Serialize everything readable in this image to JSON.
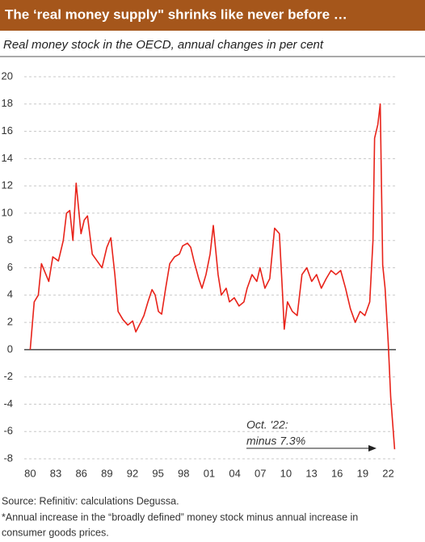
{
  "chart_data": {
    "type": "line",
    "title": "The ‘real money supply\" shrinks like never before …",
    "subtitle": "Real money stock in the OECD, annual changes in per cent",
    "source": "Source: Refinitiv: calculations Degussa.",
    "footnote": [
      "*Annual increase in the “broadly defined” money stock minus annual increase in",
      "consumer goods prices."
    ],
    "annotation": [
      "Oct. '22:",
      "minus 7.3%"
    ],
    "x": [
      1980.0,
      1980.47,
      1980.95,
      1981.32,
      1982.18,
      1982.65,
      1983.31,
      1983.88,
      1984.26,
      1984.64,
      1985.01,
      1985.39,
      1985.96,
      1986.34,
      1986.72,
      1987.28,
      1987.85,
      1988.42,
      1988.99,
      1989.46,
      1989.93,
      1990.31,
      1990.88,
      1991.45,
      1992.02,
      1992.39,
      1992.96,
      1993.34,
      1993.81,
      1994.29,
      1994.66,
      1995.04,
      1995.42,
      1995.89,
      1996.37,
      1996.93,
      1997.5,
      1997.88,
      1998.45,
      1998.83,
      1999.21,
      1999.77,
      2000.15,
      2000.62,
      2001.1,
      2001.48,
      2002.04,
      2002.42,
      2002.99,
      2003.37,
      2003.94,
      2004.5,
      2005.07,
      2005.45,
      2006.02,
      2006.58,
      2006.96,
      2007.53,
      2008.1,
      2008.67,
      2009.23,
      2009.61,
      2009.8,
      2010.18,
      2010.75,
      2011.32,
      2011.88,
      2012.45,
      2013.02,
      2013.59,
      2014.15,
      2014.72,
      2015.29,
      2015.86,
      2016.42,
      2016.99,
      2017.56,
      2018.13,
      2018.7,
      2019.26,
      2019.83,
      2020.21,
      2020.4,
      2020.78,
      2021.06,
      2021.35,
      2021.63,
      2022.0,
      2022.29,
      2022.75
    ],
    "series": [
      {
        "name": "Real money stock",
        "color": "#e8231a",
        "values": [
          0,
          3.5,
          4,
          6.3,
          5,
          6.8,
          6.5,
          8,
          10,
          10.2,
          8,
          12.2,
          8.5,
          9.5,
          9.8,
          7,
          6.5,
          6,
          7.5,
          8.2,
          5.5,
          2.8,
          2.2,
          1.8,
          2.1,
          1.3,
          2,
          2.5,
          3.5,
          4.4,
          4,
          2.8,
          2.6,
          4.5,
          6.3,
          6.8,
          7,
          7.6,
          7.8,
          7.5,
          6.5,
          5.2,
          4.5,
          5.5,
          7,
          9.1,
          5.5,
          4,
          4.5,
          3.5,
          3.8,
          3.2,
          3.5,
          4.5,
          5.5,
          5,
          6,
          4.5,
          5.2,
          8.9,
          8.5,
          4,
          1.5,
          3.5,
          2.8,
          2.5,
          5.5,
          6,
          5,
          5.5,
          4.5,
          5.2,
          5.8,
          5.5,
          5.8,
          4.5,
          3,
          2,
          2.8,
          2.5,
          3.5,
          8,
          15.5,
          16.5,
          18,
          6.2,
          4.5,
          0.5,
          -3.5,
          -7.3
        ]
      }
    ],
    "xlim": [
      1979.3,
      2022.9
    ],
    "xticks": [
      {
        "value": 1980,
        "label": "80"
      },
      {
        "value": 1983,
        "label": "83"
      },
      {
        "value": 1986,
        "label": "86"
      },
      {
        "value": 1989,
        "label": "89"
      },
      {
        "value": 1992,
        "label": "92"
      },
      {
        "value": 1995,
        "label": "95"
      },
      {
        "value": 1998,
        "label": "98"
      },
      {
        "value": 2001,
        "label": "01"
      },
      {
        "value": 2004,
        "label": "04"
      },
      {
        "value": 2007,
        "label": "07"
      },
      {
        "value": 2010,
        "label": "10"
      },
      {
        "value": 2013,
        "label": "13"
      },
      {
        "value": 2016,
        "label": "16"
      },
      {
        "value": 2019,
        "label": "19"
      },
      {
        "value": 2022,
        "label": "22"
      }
    ],
    "ylim": [
      -8,
      20
    ],
    "yticks": [
      -8,
      -6,
      -4,
      -2,
      0,
      2,
      4,
      6,
      8,
      10,
      12,
      14,
      16,
      18,
      20
    ],
    "grid": true
  }
}
